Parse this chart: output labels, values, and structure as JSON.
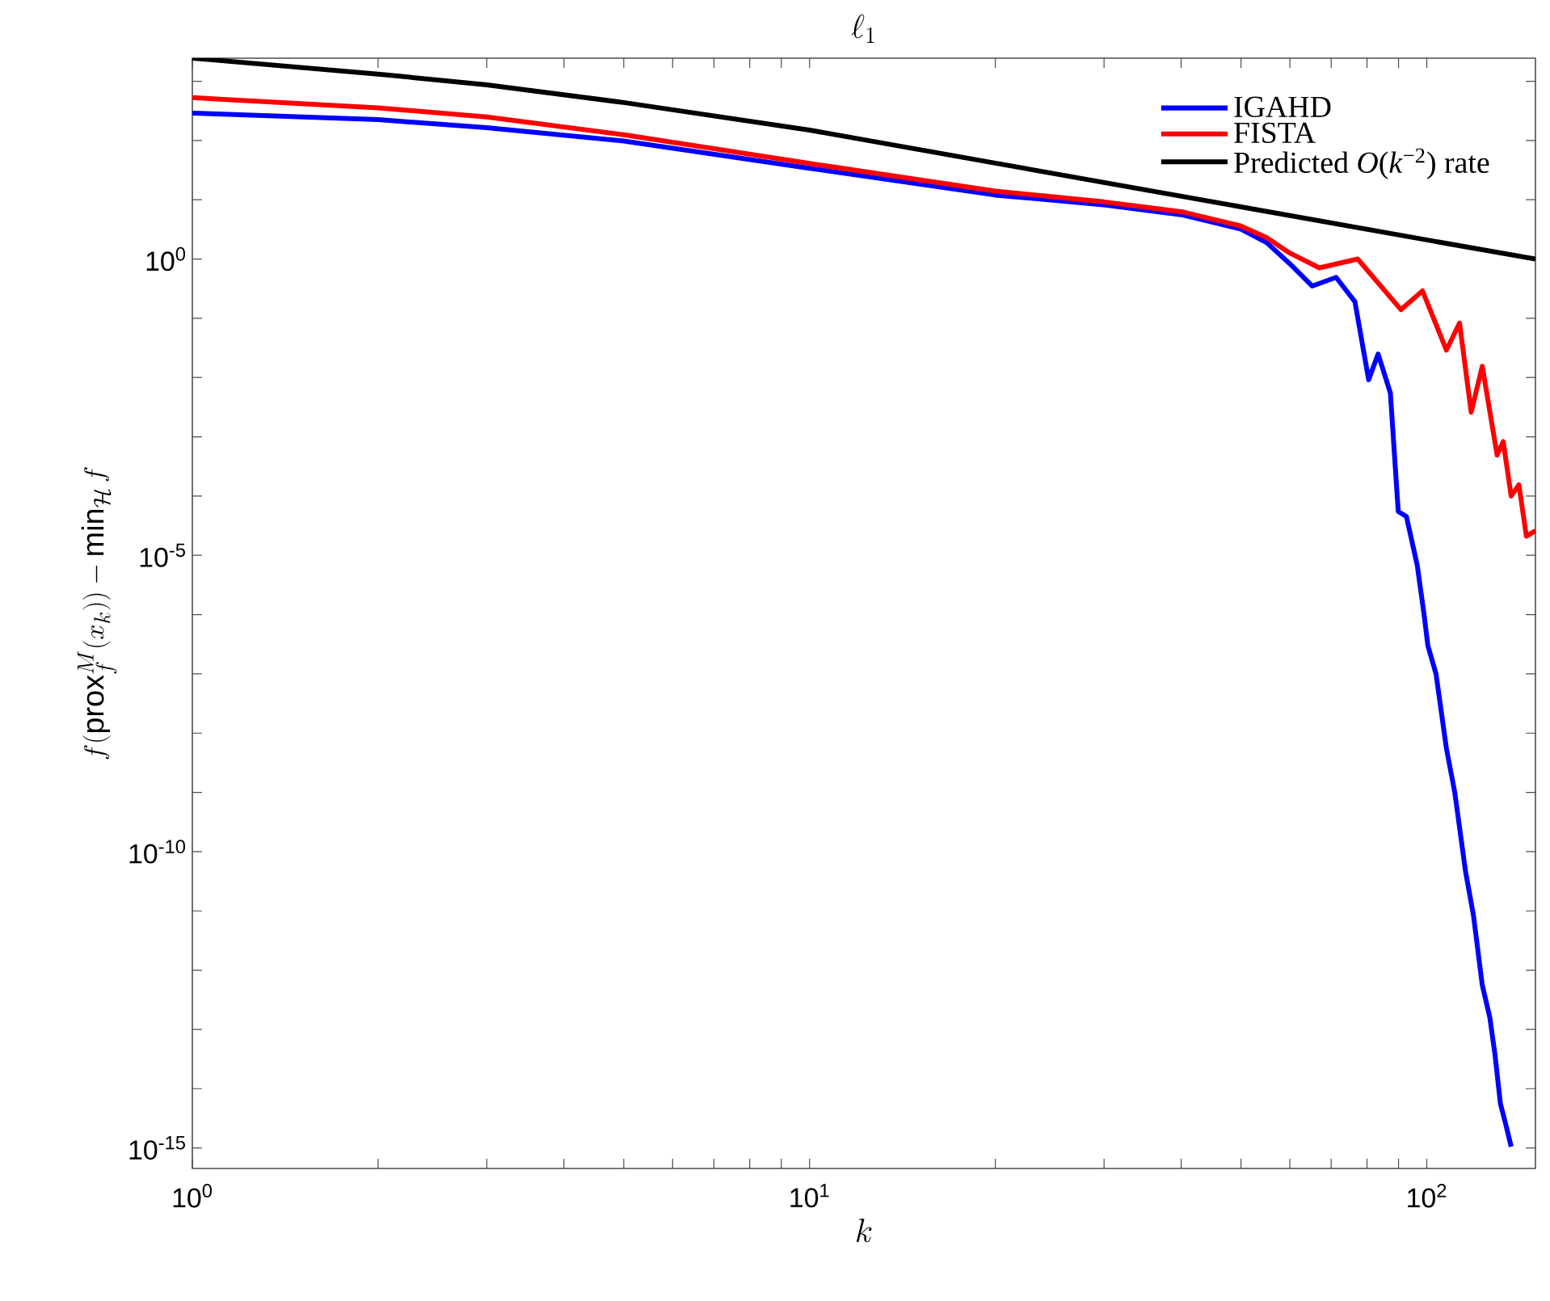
{
  "chart_data": {
    "type": "line",
    "title": "\\ell_1",
    "xlabel": "k",
    "ylabel": "f(\\mathrm{prox}_f^M(x_k)) - \\min_{\\mathcal{H}} f",
    "log": "xy",
    "legend": "top right",
    "xlim": [
      1,
      150
    ],
    "ylim": [
      4.5e-16,
      2450
    ],
    "xticks": [
      {
        "value": 1,
        "label": "10$^{0}$"
      },
      {
        "value": 2,
        "label": null
      },
      {
        "value": 3,
        "label": null
      },
      {
        "value": 4,
        "label": null
      },
      {
        "value": 5,
        "label": null
      },
      {
        "value": 6,
        "label": null
      },
      {
        "value": 7,
        "label": null
      },
      {
        "value": 8,
        "label": null
      },
      {
        "value": 9,
        "label": null
      },
      {
        "value": 10,
        "label": "10$^{1}$"
      },
      {
        "value": 20,
        "label": null
      },
      {
        "value": 30,
        "label": null
      },
      {
        "value": 40,
        "label": null
      },
      {
        "value": 50,
        "label": null
      },
      {
        "value": 60,
        "label": null
      },
      {
        "value": 70,
        "label": null
      },
      {
        "value": 80,
        "label": null
      },
      {
        "value": 90,
        "label": null
      },
      {
        "value": 100,
        "label": "10$^{2}$"
      }
    ],
    "yticks": [
      {
        "value": 1e-15,
        "label": "10$^{-15}$"
      },
      {
        "value": 1e-14,
        "label": null
      },
      {
        "value": 1e-13,
        "label": null
      },
      {
        "value": 1e-12,
        "label": null
      },
      {
        "value": 1e-11,
        "label": null
      },
      {
        "value": 1e-10,
        "label": "10$^{-10}$"
      },
      {
        "value": 1e-09,
        "label": null
      },
      {
        "value": 1e-08,
        "label": null
      },
      {
        "value": 1e-07,
        "label": null
      },
      {
        "value": 1e-06,
        "label": null
      },
      {
        "value": 1e-05,
        "label": "10$^{-5}$"
      },
      {
        "value": 0.0001,
        "label": null
      },
      {
        "value": 0.001,
        "label": null
      },
      {
        "value": 0.01,
        "label": null
      },
      {
        "value": 0.1,
        "label": null
      },
      {
        "value": 1,
        "label": "10$^{0}$"
      },
      {
        "value": 10,
        "label": null
      },
      {
        "value": 100,
        "label": null
      },
      {
        "value": 1000,
        "label": null
      }
    ],
    "series": [
      {
        "name": "IGAHD",
        "color": "#0000ff",
        "x": [
          1,
          2,
          3,
          5,
          10,
          20,
          30,
          40,
          50,
          55,
          60,
          65.2,
          71.3,
          76.5,
          80.5,
          83.4,
          87.3,
          89.9,
          92.7,
          96.5,
          99,
          100.4,
          103.5,
          107.6,
          111,
          115.6,
          119,
          123,
          126.5,
          129,
          131.6,
          134.4,
          137
        ],
        "values": [
          290,
          225,
          165,
          98,
          34,
          12,
          8.2,
          5.6,
          3.2,
          1.9,
          0.83,
          0.35,
          0.49,
          0.19,
          0.0092,
          0.025,
          0.0055,
          5.5e-05,
          4.5e-05,
          6.8e-06,
          1e-06,
          3e-07,
          1e-07,
          5.5e-09,
          1e-09,
          4.5e-11,
          8.5e-12,
          5.6e-13,
          1.6e-13,
          3.7e-14,
          5.6e-15,
          2.4e-15,
          1.05e-15
        ]
      },
      {
        "name": "FISTA",
        "color": "#ff0000",
        "x": [
          1,
          2,
          3,
          5,
          10,
          20,
          30,
          40,
          50,
          55,
          60,
          67,
          77.3,
          90.8,
          98.4,
          107.6,
          113,
          118,
          123,
          130,
          133,
          137,
          141,
          145,
          150
        ],
        "values": [
          530,
          355,
          250,
          125,
          41,
          14,
          9.2,
          6.3,
          3.6,
          2.3,
          1.26,
          0.71,
          1.0,
          0.14,
          0.29,
          0.029,
          0.083,
          0.0026,
          0.0155,
          0.00049,
          0.00083,
          0.0001,
          0.000155,
          2.1e-05,
          2.6e-05
        ]
      },
      {
        "name": "Predicted *O*(*k*$^{−2}$) rate",
        "color": "#000000",
        "x": [
          1,
          2,
          3,
          5,
          10,
          20,
          50,
          100,
          150
        ],
        "values": [
          2450,
          1320,
          870,
          437,
          150,
          41.5,
          7.6,
          2.1,
          1.0
        ]
      }
    ]
  }
}
